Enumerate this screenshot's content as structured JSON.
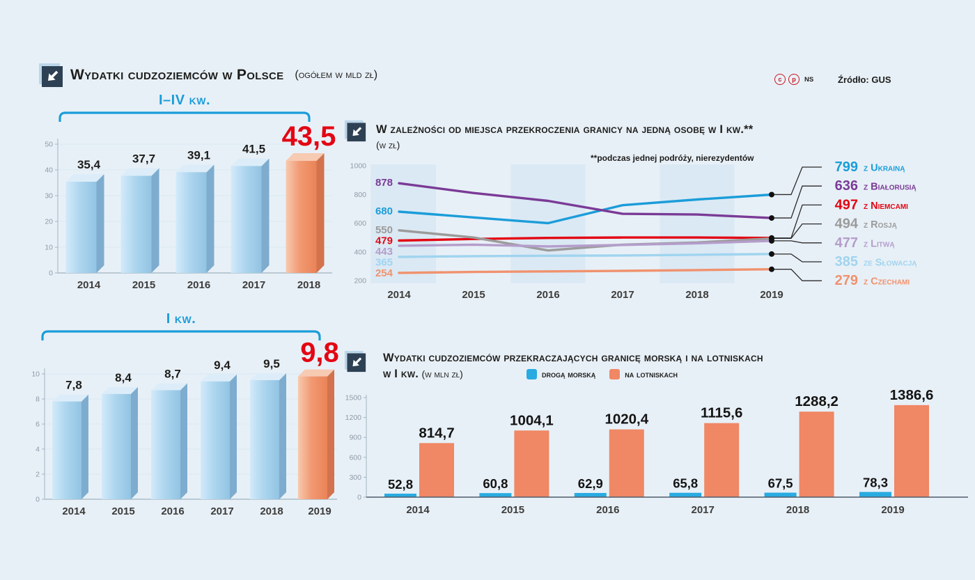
{
  "header": {
    "title": "Wydatki cudzoziemców w Polsce",
    "subtitle": "(ogółem w mld zł)"
  },
  "meta": {
    "source": "Źródło: GUS",
    "badge1": "c",
    "badge2": "p",
    "ns": "NS"
  },
  "colors": {
    "accent_blue": "#1b9dd9",
    "accent_red": "#e30613",
    "bar_blue": "#a9d2ec",
    "bar_orange": "#f09a73"
  },
  "chart_data": [
    {
      "id": "total_annual",
      "type": "bar",
      "bracket_label": "I–IV kw.",
      "categories": [
        "2014",
        "2015",
        "2016",
        "2017",
        "2018"
      ],
      "values": [
        35.4,
        37.7,
        39.1,
        41.5,
        43.5
      ],
      "labels": [
        "35,4",
        "37,7",
        "39,1",
        "41,5",
        "43,5"
      ],
      "highlight_index": 4,
      "ylim": [
        0,
        50
      ],
      "yticks": [
        0,
        10,
        20,
        30,
        40,
        50
      ]
    },
    {
      "id": "q1_annual",
      "type": "bar",
      "bracket_label": "I kw.",
      "categories": [
        "2014",
        "2015",
        "2016",
        "2017",
        "2018",
        "2019"
      ],
      "values": [
        7.8,
        8.4,
        8.7,
        9.4,
        9.5,
        9.8
      ],
      "labels": [
        "7,8",
        "8,4",
        "8,7",
        "9,4",
        "9,5",
        "9,8"
      ],
      "highlight_index": 5,
      "ylim": [
        0,
        10
      ],
      "yticks": [
        0,
        2,
        4,
        6,
        8,
        10
      ]
    },
    {
      "id": "border_per_person",
      "type": "line",
      "title": "W zależności od miejsca przekroczenia granicy na jedną osobę w I kw.**",
      "subtitle": "(w zł)",
      "note": "**podczas jednej podróży, nierezydentów",
      "x": [
        2014,
        2015,
        2016,
        2017,
        2018,
        2019
      ],
      "ylim": [
        200,
        1000
      ],
      "yticks": [
        1000,
        800,
        600,
        400,
        200
      ],
      "series": [
        {
          "name": "z Ukrainą",
          "color": "#1b9dd9",
          "values": [
            680,
            640,
            600,
            725,
            765,
            799
          ],
          "start_label": "680",
          "end_label": "799"
        },
        {
          "name": "z Białorusią",
          "color": "#7a3b96",
          "values": [
            878,
            810,
            755,
            665,
            660,
            636
          ],
          "start_label": "878",
          "end_label": "636"
        },
        {
          "name": "z Niemcami",
          "color": "#e30613",
          "values": [
            479,
            490,
            497,
            500,
            500,
            497
          ],
          "start_label": "479",
          "end_label": "497"
        },
        {
          "name": "z Rosją",
          "color": "#9b9b9b",
          "values": [
            550,
            500,
            410,
            450,
            465,
            494
          ],
          "start_label": "550",
          "end_label": "494"
        },
        {
          "name": "z Litwą",
          "color": "#b49dcb",
          "values": [
            443,
            450,
            438,
            448,
            460,
            477
          ],
          "start_label": "443",
          "end_label": "477"
        },
        {
          "name": "ze Słowacją",
          "color": "#a0d4ef",
          "values": [
            365,
            370,
            373,
            375,
            380,
            385
          ],
          "start_label": "365",
          "end_label": "385"
        },
        {
          "name": "z Czechami",
          "color": "#f0926e",
          "values": [
            254,
            260,
            264,
            268,
            273,
            279
          ],
          "start_label": "254",
          "end_label": "279"
        }
      ]
    },
    {
      "id": "sea_air",
      "type": "bar",
      "title": "Wydatki cudzoziemców przekraczających granicę morską i na lotniskach",
      "title2": "w I kw.",
      "unit": "(w mln zł)",
      "categories": [
        "2014",
        "2015",
        "2016",
        "2017",
        "2018",
        "2019"
      ],
      "series": [
        {
          "name": "drogą morską",
          "color": "#29abe2",
          "values": [
            52.8,
            60.8,
            62.9,
            65.8,
            67.5,
            78.3
          ],
          "labels": [
            "52,8",
            "60,8",
            "62,9",
            "65,8",
            "67,5",
            "78,3"
          ]
        },
        {
          "name": "na lotniskach",
          "color": "#f08765",
          "values": [
            814.7,
            1004.1,
            1020.4,
            1115.6,
            1288.2,
            1386.6
          ],
          "labels": [
            "814,7",
            "1004,1",
            "1020,4",
            "1115,6",
            "1288,2",
            "1386,6"
          ]
        }
      ],
      "ylim": [
        0,
        1500
      ],
      "yticks": [
        0,
        300,
        600,
        900,
        1200,
        1500
      ]
    }
  ]
}
